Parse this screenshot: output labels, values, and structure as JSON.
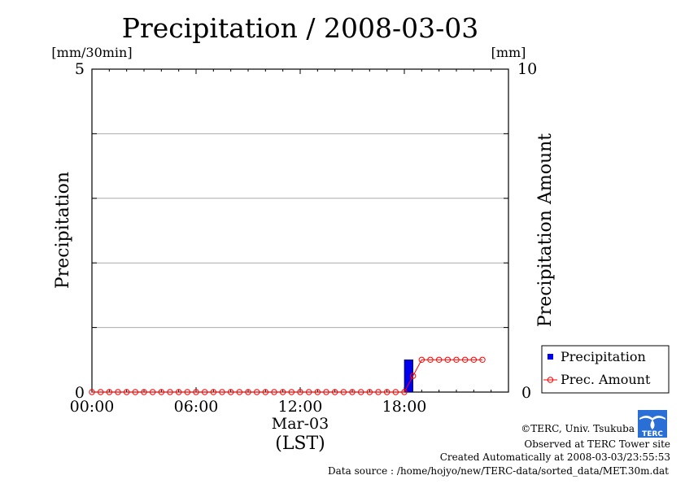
{
  "chart_data": {
    "type": "bar+line",
    "title": "Precipitation / 2008-03-03",
    "left_unit": "[mm/30min]",
    "right_unit": "[mm]",
    "ylabel_left": "Precipitation",
    "ylabel_right": "Precipitation Amount",
    "ylim_left": [
      0,
      5
    ],
    "ylim_right": [
      0,
      10
    ],
    "y_ticks_left": [
      "0",
      "5"
    ],
    "y_ticks_right": [
      "0",
      "10"
    ],
    "x_ticks": [
      "00:00",
      "06:00",
      "12:00",
      "18:00"
    ],
    "x_date": "Mar-03",
    "x_unit": "(LST)",
    "grid": "horizontal",
    "x_hours": [
      0,
      0.5,
      1,
      1.5,
      2,
      2.5,
      3,
      3.5,
      4,
      4.5,
      5,
      5.5,
      6,
      6.5,
      7,
      7.5,
      8,
      8.5,
      9,
      9.5,
      10,
      10.5,
      11,
      11.5,
      12,
      12.5,
      13,
      13.5,
      14,
      14.5,
      15,
      15.5,
      16,
      16.5,
      17,
      17.5,
      18,
      18.5,
      19,
      19.5,
      20,
      20.5,
      21,
      21.5,
      22,
      22.5
    ],
    "series": [
      {
        "name": "Precipitation",
        "kind": "bar",
        "axis": "left",
        "color": "#0000ee",
        "values": [
          0,
          0,
          0,
          0,
          0,
          0,
          0,
          0,
          0,
          0,
          0,
          0,
          0,
          0,
          0,
          0,
          0,
          0,
          0,
          0,
          0,
          0,
          0,
          0,
          0,
          0,
          0,
          0,
          0,
          0,
          0,
          0,
          0,
          0,
          0,
          0,
          0.5,
          0,
          0,
          0,
          0,
          0,
          0,
          0,
          0,
          0
        ]
      },
      {
        "name": "Prec. Amount",
        "kind": "line",
        "axis": "right",
        "color": "#ff0000",
        "values": [
          0,
          0,
          0,
          0,
          0,
          0,
          0,
          0,
          0,
          0,
          0,
          0,
          0,
          0,
          0,
          0,
          0,
          0,
          0,
          0,
          0,
          0,
          0,
          0,
          0,
          0,
          0,
          0,
          0,
          0,
          0,
          0,
          0,
          0,
          0,
          0,
          0,
          0.5,
          1.0,
          1.0,
          1.0,
          1.0,
          1.0,
          1.0,
          1.0,
          1.0
        ]
      }
    ],
    "legend": "right"
  },
  "credits": {
    "copyright": "©TERC, Univ. Tsukuba",
    "observed": "Observed at TERC Tower site",
    "created": "Created Automatically at 2008-03-03/23:55:53",
    "source": "Data source : /home/hojyo/new/TERC-data/sorted_data/MET.30m.dat",
    "logo_text": "TERC"
  }
}
